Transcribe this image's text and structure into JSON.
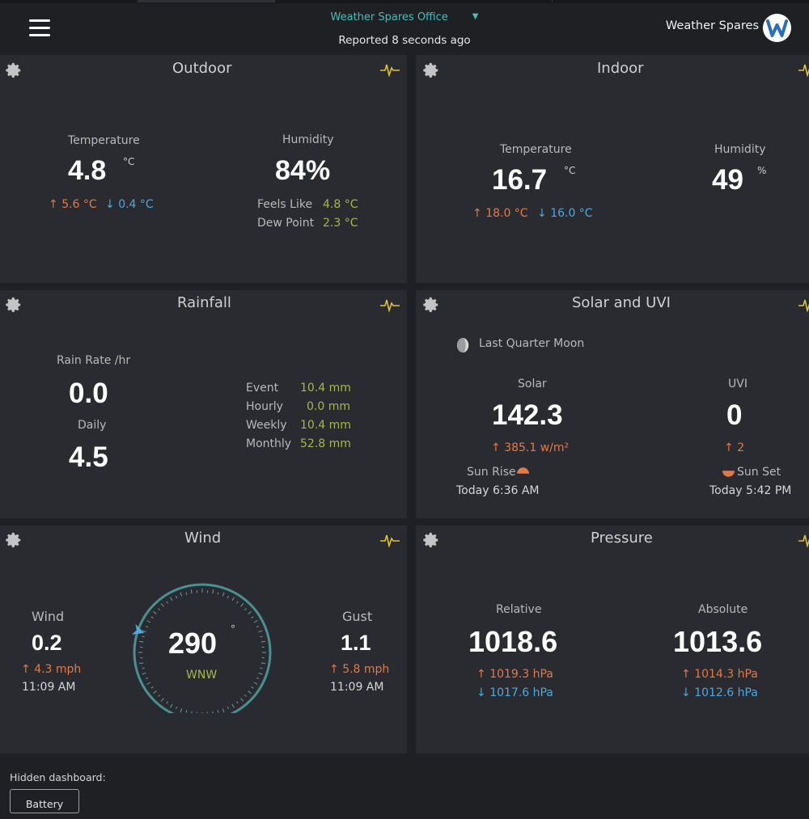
{
  "header": {
    "station": "Weather Spares Office",
    "reported": "Reported 8 seconds ago",
    "brand": "Weather Spares"
  },
  "colors": {
    "accent": "#4bbcb8",
    "high": "#e07a4a",
    "low": "#4ba8e0",
    "secondary": "#a7b64a",
    "chart_icon": "#e2c23a"
  },
  "outdoor": {
    "title": "Outdoor",
    "temp_label": "Temperature",
    "temp": "4.8",
    "temp_unit": "°C",
    "temp_high": "5.6 °C",
    "temp_low": "0.4 °C",
    "hum_label": "Humidity",
    "hum": "84%",
    "feels_label": "Feels Like",
    "feels": "4.8 °C",
    "dew_label": "Dew Point",
    "dew": "2.3 °C"
  },
  "indoor": {
    "title": "Indoor",
    "temp_label": "Temperature",
    "temp": "16.7",
    "temp_unit": "°C",
    "temp_high": "18.0 °C",
    "temp_low": "16.0 °C",
    "hum_label": "Humidity",
    "hum": "49",
    "hum_unit": "%"
  },
  "rainfall": {
    "title": "Rainfall",
    "rate_label": "Rain Rate /hr",
    "rate": "0.0",
    "daily_label": "Daily",
    "daily": "4.5",
    "event_label": "Event",
    "event": "10.4 mm",
    "hourly_label": "Hourly",
    "hourly": "0.0 mm",
    "weekly_label": "Weekly",
    "weekly": "10.4 mm",
    "monthly_label": "Monthly",
    "monthly": "52.8 mm"
  },
  "solar": {
    "title": "Solar and UVI",
    "moon": "Last Quarter Moon",
    "solar_label": "Solar",
    "solar": "142.3",
    "solar_high": "385.1 w/m²",
    "uvi_label": "UVI",
    "uvi": "0",
    "uvi_high": "2",
    "sunrise_label": "Sun Rise",
    "sunrise": "Today 6:36 AM",
    "sunset_label": "Sun Set",
    "sunset": "Today 5:42 PM"
  },
  "wind": {
    "title": "Wind",
    "wind_label": "Wind",
    "wind": "0.2",
    "wind_high": "4.3 mph",
    "wind_time": "11:09 AM",
    "direction": "290",
    "direction_unit": "°",
    "cardinal": "WNW",
    "direction_deg": 290,
    "gust_label": "Gust",
    "gust": "1.1",
    "gust_high": "5.8 mph",
    "gust_time": "11:09 AM"
  },
  "pressure": {
    "title": "Pressure",
    "rel_label": "Relative",
    "rel": "1018.6",
    "rel_high": "1019.3 hPa",
    "rel_low": "1017.6 hPa",
    "abs_label": "Absolute",
    "abs": "1013.6",
    "abs_high": "1014.3 hPa",
    "abs_low": "1012.6 hPa"
  },
  "footer": {
    "hidden_label": "Hidden dashboard:",
    "battery": "Battery"
  }
}
